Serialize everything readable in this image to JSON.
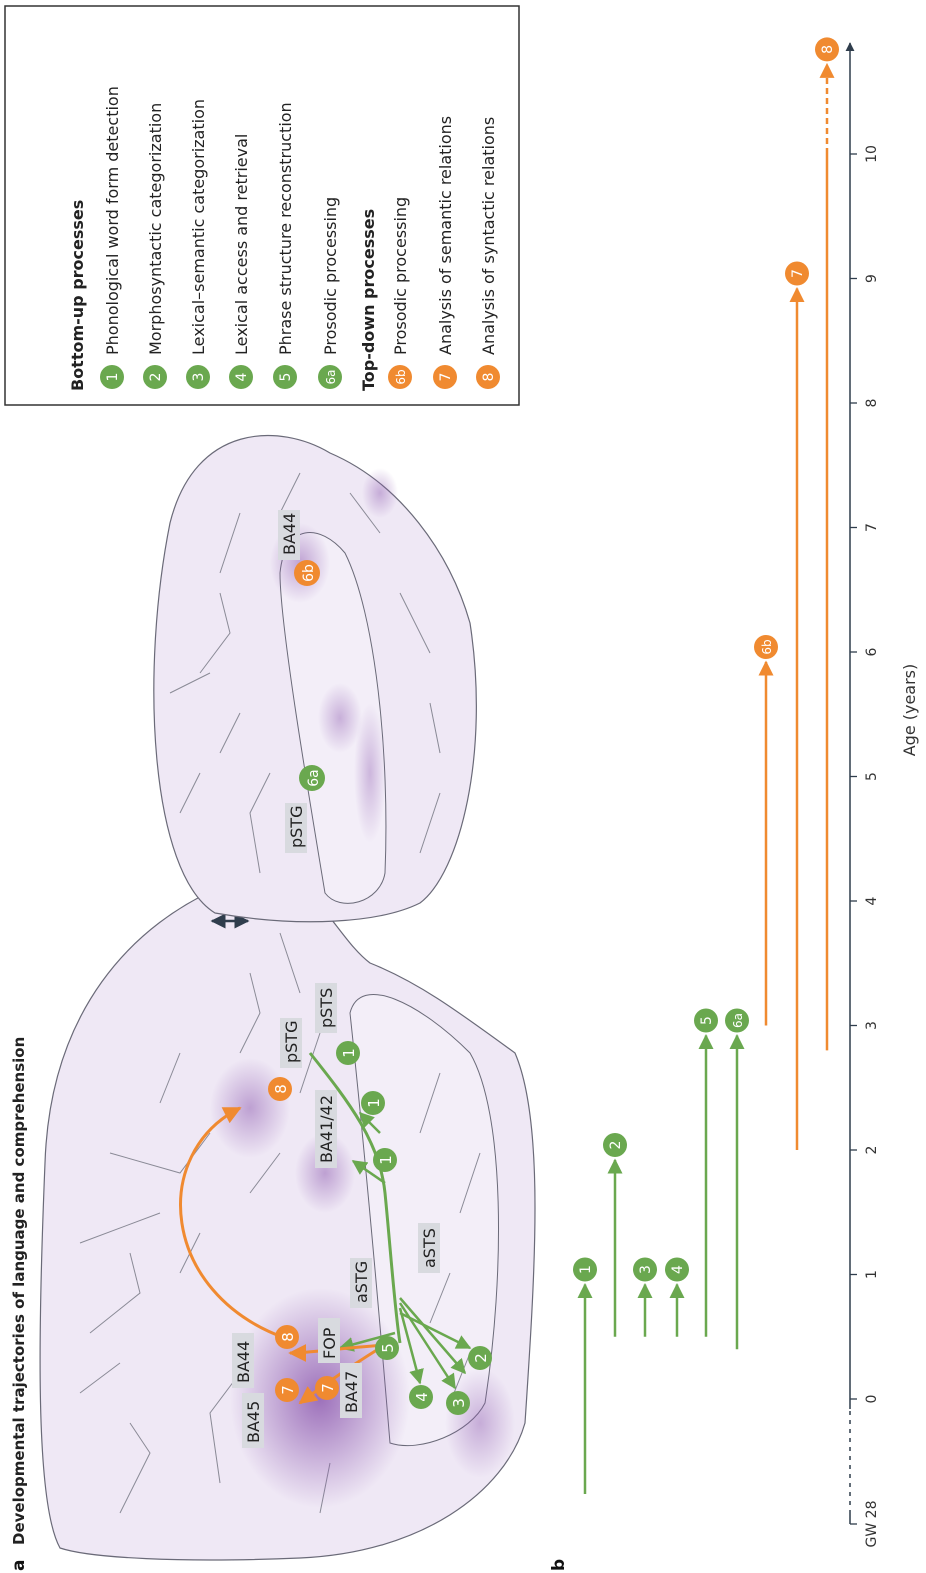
{
  "panel_a_label": "a",
  "panel_b_label": "b",
  "title": "Developmental trajectories of language and comprehension",
  "legend": {
    "bottom_up_title": "Bottom-up processes",
    "top_down_title": "Top-down processes",
    "bottom_up": [
      {
        "id": "1",
        "label": "Phonological word form detection"
      },
      {
        "id": "2",
        "label": "Morphosyntactic categorization"
      },
      {
        "id": "3",
        "label": "Lexical–semantic categorization"
      },
      {
        "id": "4",
        "label": "Lexical access and retrieval"
      },
      {
        "id": "5",
        "label": "Phrase structure reconstruction"
      },
      {
        "id": "6a",
        "label": "Prosodic processing"
      }
    ],
    "top_down": [
      {
        "id": "6b",
        "label": "Prosodic processing"
      },
      {
        "id": "7",
        "label": "Analysis of semantic relations"
      },
      {
        "id": "8",
        "label": "Analysis of syntactic relations"
      }
    ]
  },
  "colors": {
    "bottom_up": "#6aa84f",
    "top_down": "#f08a30",
    "brain": "#ede6f3",
    "axis": "#2f3d4c"
  },
  "brain_left": {
    "regions": [
      "BA45",
      "BA44",
      "BA47",
      "FOP",
      "aSTG",
      "aSTS",
      "BA41/42",
      "pSTG",
      "pSTS"
    ]
  },
  "brain_right": {
    "regions": [
      "pSTG",
      "BA44"
    ],
    "markers": [
      "6a",
      "6b"
    ]
  },
  "axis": {
    "xlabel": "Age (years)",
    "ticks": [
      "GW 28",
      "0",
      "1",
      "2",
      "3",
      "4",
      "5",
      "6",
      "7",
      "8",
      "9",
      "10"
    ]
  },
  "chart_data": {
    "type": "timeline",
    "xlabel": "Age (years)",
    "x_unit": "years",
    "series": [
      {
        "id": "1",
        "group": "bottom-up",
        "start": "GW 28",
        "end": 1
      },
      {
        "id": "2",
        "group": "bottom-up",
        "start": 0.5,
        "end": 2
      },
      {
        "id": "3",
        "group": "bottom-up",
        "start": 0.5,
        "end": 1
      },
      {
        "id": "4",
        "group": "bottom-up",
        "start": 0.5,
        "end": 1
      },
      {
        "id": "5",
        "group": "bottom-up",
        "start": 0.5,
        "end": 3
      },
      {
        "id": "6a",
        "group": "bottom-up",
        "start": 0.4,
        "end": 3
      },
      {
        "id": "6b",
        "group": "top-down",
        "start": 3,
        "end": 6
      },
      {
        "id": "7",
        "group": "top-down",
        "start": 2,
        "end": 9
      },
      {
        "id": "8",
        "group": "top-down",
        "start": 2.8,
        "end": 10.8
      }
    ]
  }
}
